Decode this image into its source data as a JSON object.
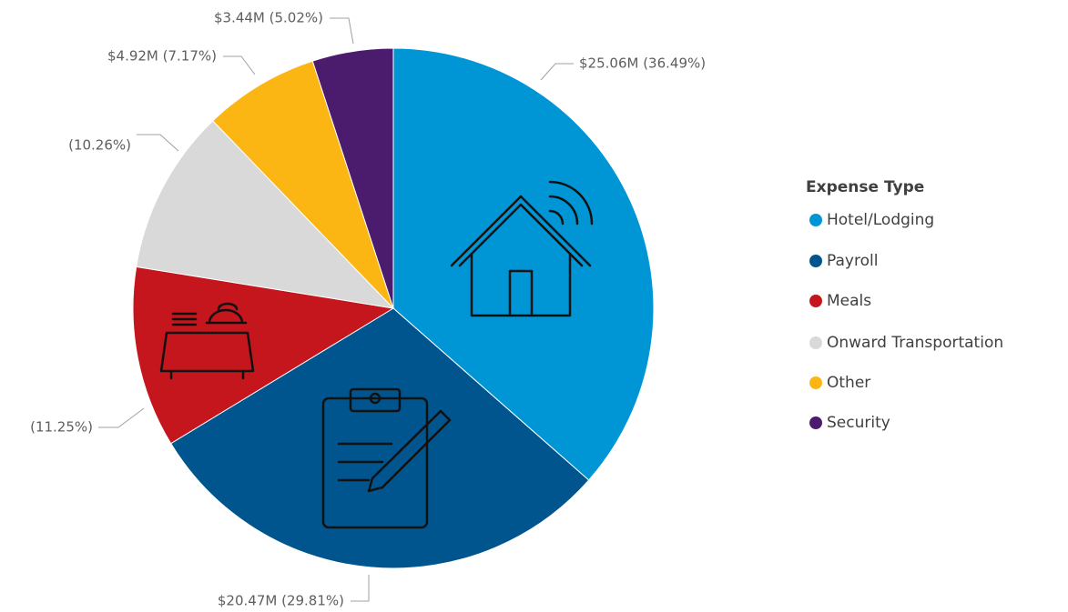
{
  "chart_data": {
    "type": "pie",
    "categories": [
      "Hotel/Lodging",
      "Payroll",
      "Meals",
      "Onward Transportation",
      "Other",
      "Security"
    ],
    "values": [
      36.49,
      29.81,
      11.25,
      10.26,
      7.17,
      5.02
    ],
    "value_labels": [
      "$25.06M (36.49%)",
      "$20.47M (29.81%)",
      "(11.25%)",
      "(10.26%)",
      "$4.92M (7.17%)",
      "$3.44M (5.02%)"
    ],
    "colors": [
      "#0096d6",
      "#00558f",
      "#c4161c",
      "#d9d9d9",
      "#fbb614",
      "#4b1c6e"
    ],
    "legend_title": "Expense Type",
    "legend_position": "right"
  }
}
